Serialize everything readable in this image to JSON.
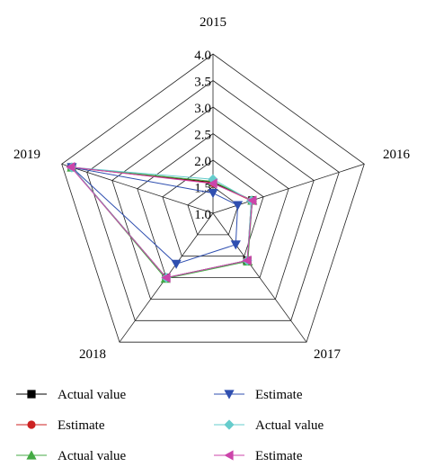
{
  "chart_data": {
    "type": "radar",
    "title": "",
    "axes": [
      "2015",
      "2016",
      "2017",
      "2018",
      "2019"
    ],
    "range": [
      1.0,
      4.0
    ],
    "ticks": [
      {
        "value": 1.0,
        "label": "1.0"
      },
      {
        "value": 1.5,
        "label": "1.5"
      },
      {
        "value": 2.0,
        "label": "2.0"
      },
      {
        "value": 2.5,
        "label": "2.5"
      },
      {
        "value": 3.0,
        "label": "3.0"
      },
      {
        "value": 3.5,
        "label": "3.5"
      },
      {
        "value": 4.0,
        "label": "4.0"
      }
    ],
    "grid": true,
    "legend_position": "bottom",
    "series": [
      {
        "name": "Actual value",
        "marker": "square",
        "color": "#000000",
        "values": [
          1.58,
          1.78,
          2.1,
          2.5,
          3.8
        ]
      },
      {
        "name": "Estimate",
        "marker": "circle",
        "color": "#cc2222",
        "values": [
          1.57,
          1.76,
          2.1,
          2.5,
          3.8
        ]
      },
      {
        "name": "Actual value",
        "marker": "triangle-up",
        "color": "#44aa44",
        "values": [
          1.6,
          1.78,
          2.12,
          2.52,
          3.8
        ]
      },
      {
        "name": "Estimate",
        "marker": "triangle-down",
        "color": "#2f4fb0",
        "values": [
          1.38,
          1.49,
          1.73,
          2.18,
          3.8
        ]
      },
      {
        "name": "Actual value",
        "marker": "diamond",
        "color": "#66cccc",
        "values": [
          1.64,
          1.76,
          2.1,
          2.5,
          3.8
        ]
      },
      {
        "name": "Estimate",
        "marker": "triangle-left",
        "color": "#cc44aa",
        "values": [
          1.56,
          1.78,
          2.1,
          2.5,
          3.82
        ]
      }
    ]
  }
}
